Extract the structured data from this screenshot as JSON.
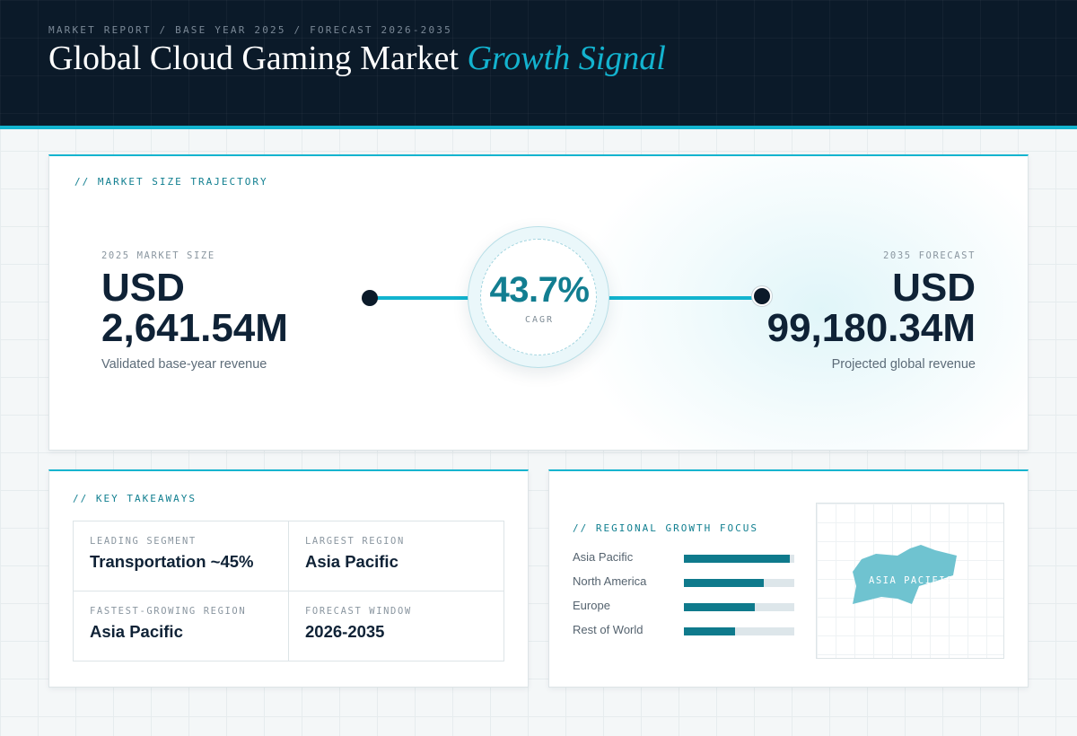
{
  "header": {
    "eyebrow": "MARKET REPORT / BASE YEAR 2025 / FORECAST 2026-2035",
    "title_main": "Global Cloud Gaming Market",
    "title_accent": "Growth Signal"
  },
  "trajectory": {
    "section_label": "// MARKET SIZE TRAJECTORY",
    "base": {
      "label": "2025 MARKET SIZE",
      "currency": "USD",
      "value": "2,641.54M",
      "caption": "Validated base-year revenue"
    },
    "cagr": {
      "value": "43.7%",
      "label": "CAGR"
    },
    "forecast": {
      "label": "2035 FORECAST",
      "currency": "USD",
      "value": "99,180.34M",
      "caption": "Projected global revenue"
    }
  },
  "takeaways": {
    "section_label": "// KEY TAKEAWAYS",
    "items": [
      {
        "key": "LEADING SEGMENT",
        "value": "Transportation ~45%"
      },
      {
        "key": "LARGEST REGION",
        "value": "Asia Pacific"
      },
      {
        "key": "FASTEST-GROWING REGION",
        "value": "Asia Pacific"
      },
      {
        "key": "FORECAST WINDOW",
        "value": "2026-2035"
      }
    ]
  },
  "regional": {
    "section_label": "// REGIONAL GROWTH FOCUS",
    "regions": [
      {
        "name": "Asia Pacific",
        "level": 0.96
      },
      {
        "name": "North America",
        "level": 0.72
      },
      {
        "name": "Europe",
        "level": 0.64
      },
      {
        "name": "Rest of World",
        "level": 0.46
      }
    ],
    "map_label": "ASIA PACIFIC"
  },
  "colors": {
    "accent": "#12b4cf",
    "accent_dark": "#0f7a8c",
    "navy": "#0b1a29",
    "text_dark": "#0f2236"
  }
}
